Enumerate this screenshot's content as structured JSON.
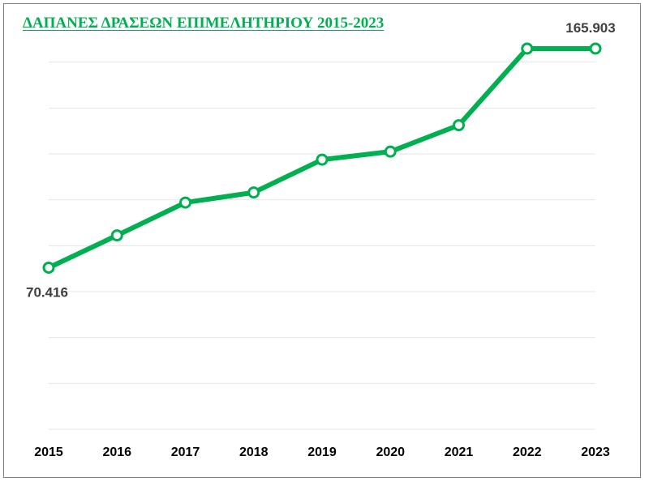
{
  "chart_data": {
    "type": "line",
    "title": "ΔΑΠΑΝΕΣ ΔΡΑΣΕΩΝ ΕΠΙΜΕΛΗΤΗΡΙΟΥ 2015-2023",
    "categories": [
      "2015",
      "2016",
      "2017",
      "2018",
      "2019",
      "2020",
      "2021",
      "2022",
      "2023"
    ],
    "series": [
      {
        "values": [
          70416,
          84500,
          98800,
          103200,
          117500,
          121000,
          132500,
          165903,
          165903
        ],
        "data_labels": {
          "0": "70.416",
          "8": "165.903"
        }
      }
    ],
    "ylim": [
      0,
      180000
    ],
    "grid": true,
    "legend": "none",
    "colors": {
      "line": "#00b050",
      "marker_fill": "#ffffff",
      "grid": "#e6e6e6",
      "title": "#00b050"
    }
  }
}
